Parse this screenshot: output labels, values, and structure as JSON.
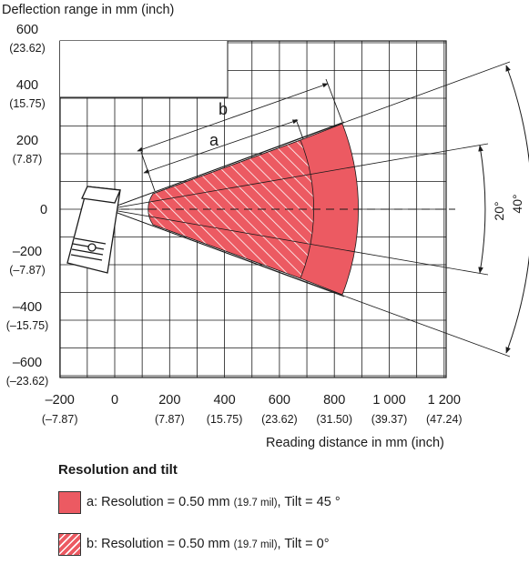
{
  "axes": {
    "y_title": "Deflection range in mm (inch)",
    "x_title": "Reading distance in mm (inch)",
    "y_ticks": [
      {
        "mm": "600",
        "inch": "(23.62)",
        "value": 600
      },
      {
        "mm": "400",
        "inch": "(15.75)",
        "value": 400
      },
      {
        "mm": "200",
        "inch": "(7.87)",
        "value": 200
      },
      {
        "mm": "0",
        "inch": "",
        "value": 0
      },
      {
        "mm": "–200",
        "inch": "(–7.87)",
        "value": -200
      },
      {
        "mm": "–400",
        "inch": "(–15.75)",
        "value": -400
      },
      {
        "mm": "–600",
        "inch": "(–23.62)",
        "value": -600
      }
    ],
    "x_ticks": [
      {
        "mm": "–200",
        "inch": "(–7.87)",
        "value": -200
      },
      {
        "mm": "0",
        "inch": "",
        "value": 0
      },
      {
        "mm": "200",
        "inch": "(7.87)",
        "value": 200
      },
      {
        "mm": "400",
        "inch": "(15.75)",
        "value": 400
      },
      {
        "mm": "600",
        "inch": "(23.62)",
        "value": 600
      },
      {
        "mm": "800",
        "inch": "(31.50)",
        "value": 800
      },
      {
        "mm": "1 000",
        "inch": "(39.37)",
        "value": 1000
      },
      {
        "mm": "1 200",
        "inch": "(47.24)",
        "value": 1200
      }
    ],
    "x_range": [
      -200,
      1200
    ],
    "y_range": [
      -600,
      600
    ]
  },
  "annotations": {
    "a": "a",
    "b": "b",
    "angle_small": "20°",
    "angle_large": "40°"
  },
  "field_a": {
    "angle_deg": 40,
    "range_mm": [
      140,
      820
    ]
  },
  "field_b": {
    "angle_deg": 40,
    "range_mm": [
      140,
      700
    ]
  },
  "colors": {
    "field": "#ec5a62",
    "hatch_line": "#ffffff",
    "grid": "#1a1a1a"
  },
  "legend": {
    "title": "Resolution and tilt",
    "items": [
      {
        "prefix": "a: Resolution = 0.50 mm ",
        "mil": "(19.7 mil)",
        "suffix": ", Tilt = 45 °",
        "style": "solid"
      },
      {
        "prefix": "b: Resolution = 0.50 mm ",
        "mil": "(19.7 mil)",
        "suffix": ", Tilt = 0°",
        "style": "hatched"
      }
    ]
  }
}
